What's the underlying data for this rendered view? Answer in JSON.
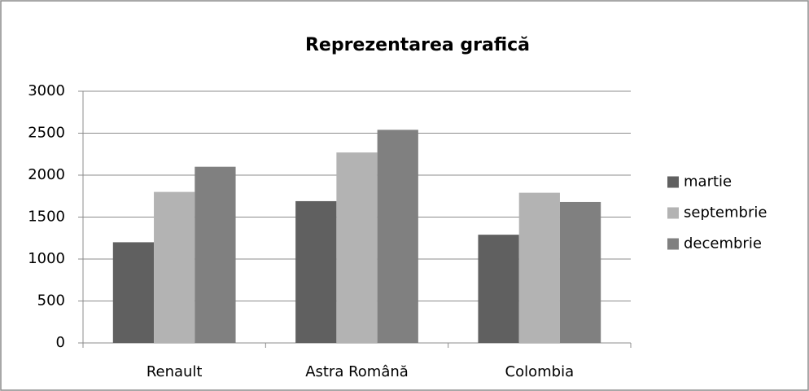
{
  "chart_data": {
    "type": "bar",
    "title": "Reprezentarea grafică",
    "categories": [
      "Renault",
      "Astra Română",
      "Colombia"
    ],
    "series": [
      {
        "name": "martie",
        "color": "#606060",
        "values": [
          1200,
          1690,
          1290
        ]
      },
      {
        "name": "septembrie",
        "color": "#b3b3b3",
        "values": [
          1800,
          2270,
          1790
        ]
      },
      {
        "name": "decembrie",
        "color": "#808080",
        "values": [
          2100,
          2540,
          1680
        ]
      }
    ],
    "ylim": [
      0,
      3000
    ],
    "yticks": [
      0,
      500,
      1000,
      1500,
      2000,
      2500,
      3000
    ],
    "grid": true,
    "legend": "right"
  }
}
